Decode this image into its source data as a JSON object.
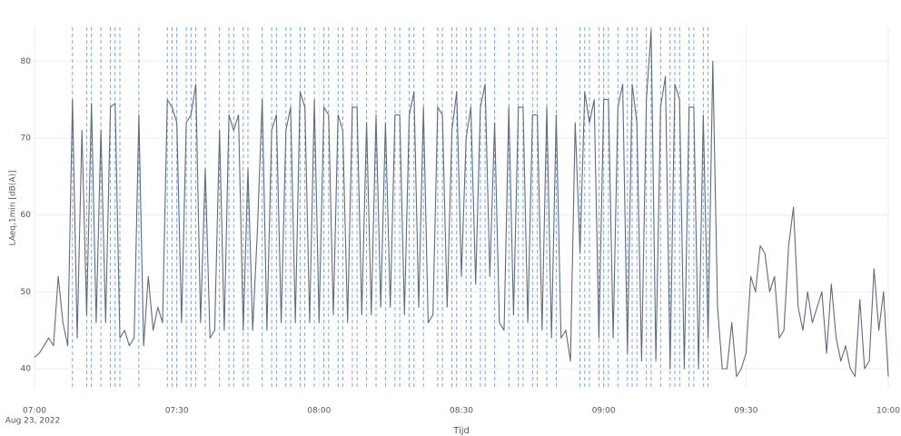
{
  "chart_data": {
    "type": "line",
    "x_label": "Tijd",
    "y_label": "LAeq,1min [dB(A)]",
    "date_label": "Aug 23, 2022",
    "xlim": [
      "07:00",
      "10:00"
    ],
    "xticks": [
      "07:00",
      "07:30",
      "08:00",
      "08:30",
      "09:00",
      "09:30",
      "10:00"
    ],
    "ylim": [
      37.4,
      84.4
    ],
    "yticks": [
      40,
      50,
      60,
      70,
      80
    ],
    "grid": true,
    "event_color": "#7aa7e0",
    "events": [
      "07:08",
      "07:11",
      "07:12",
      "07:14",
      "07:16",
      "07:17",
      "07:18",
      "07:22",
      "07:28",
      "07:29",
      "07:30",
      "07:32",
      "07:33",
      "07:34",
      "07:36",
      "07:39",
      "07:41",
      "07:42",
      "07:44",
      "07:45",
      "07:48",
      "07:50",
      "07:51",
      "07:53",
      "07:54",
      "07:56",
      "07:57",
      "07:59",
      "08:01",
      "08:02",
      "08:04",
      "08:05",
      "08:07",
      "08:08",
      "08:10",
      "08:12",
      "08:14",
      "08:16",
      "08:17",
      "08:19",
      "08:20",
      "08:22",
      "08:25",
      "08:26",
      "08:28",
      "08:29",
      "08:31",
      "08:32",
      "08:34",
      "08:35",
      "08:37",
      "08:40",
      "08:42",
      "08:43",
      "08:45",
      "08:46",
      "08:48",
      "08:50",
      "08:55",
      "08:56",
      "08:57",
      "08:59",
      "09:00",
      "09:01",
      "09:03",
      "09:05",
      "09:06",
      "09:07",
      "09:09",
      "09:10",
      "09:12",
      "09:14",
      "09:15",
      "09:16",
      "09:18",
      "09:19",
      "09:21",
      "09:22"
    ],
    "x": [
      "07:00",
      "07:01",
      "07:02",
      "07:03",
      "07:04",
      "07:05",
      "07:06",
      "07:07",
      "07:08",
      "07:09",
      "07:10",
      "07:11",
      "07:12",
      "07:13",
      "07:14",
      "07:15",
      "07:16",
      "07:17",
      "07:18",
      "07:19",
      "07:20",
      "07:21",
      "07:22",
      "07:23",
      "07:24",
      "07:25",
      "07:26",
      "07:27",
      "07:28",
      "07:29",
      "07:30",
      "07:31",
      "07:32",
      "07:33",
      "07:34",
      "07:35",
      "07:36",
      "07:37",
      "07:38",
      "07:39",
      "07:40",
      "07:41",
      "07:42",
      "07:43",
      "07:44",
      "07:45",
      "07:46",
      "07:47",
      "07:48",
      "07:49",
      "07:50",
      "07:51",
      "07:52",
      "07:53",
      "07:54",
      "07:55",
      "07:56",
      "07:57",
      "07:58",
      "07:59",
      "08:00",
      "08:01",
      "08:02",
      "08:03",
      "08:04",
      "08:05",
      "08:06",
      "08:07",
      "08:08",
      "08:09",
      "08:10",
      "08:11",
      "08:12",
      "08:13",
      "08:14",
      "08:15",
      "08:16",
      "08:17",
      "08:18",
      "08:19",
      "08:20",
      "08:21",
      "08:22",
      "08:23",
      "08:24",
      "08:25",
      "08:26",
      "08:27",
      "08:28",
      "08:29",
      "08:30",
      "08:31",
      "08:32",
      "08:33",
      "08:34",
      "08:35",
      "08:36",
      "08:37",
      "08:38",
      "08:39",
      "08:40",
      "08:41",
      "08:42",
      "08:43",
      "08:44",
      "08:45",
      "08:46",
      "08:47",
      "08:48",
      "08:49",
      "08:50",
      "08:51",
      "08:52",
      "08:53",
      "08:54",
      "08:55",
      "08:56",
      "08:57",
      "08:58",
      "08:59",
      "09:00",
      "09:01",
      "09:02",
      "09:03",
      "09:04",
      "09:05",
      "09:06",
      "09:07",
      "09:08",
      "09:09",
      "09:10",
      "09:11",
      "09:12",
      "09:13",
      "09:14",
      "09:15",
      "09:16",
      "09:17",
      "09:18",
      "09:19",
      "09:20",
      "09:21",
      "09:22",
      "09:23",
      "09:24",
      "09:25",
      "09:26",
      "09:27",
      "09:28",
      "09:29",
      "09:30",
      "09:31",
      "09:32",
      "09:33",
      "09:34",
      "09:35",
      "09:36",
      "09:37",
      "09:38",
      "09:39",
      "09:40",
      "09:41",
      "09:42",
      "09:43",
      "09:44",
      "09:45",
      "09:46",
      "09:47",
      "09:48",
      "09:49",
      "09:50",
      "09:51",
      "09:52",
      "09:53",
      "09:54",
      "09:55",
      "09:56",
      "09:57",
      "09:58",
      "09:59",
      "10:00"
    ],
    "series": [
      {
        "color": "#5f6b7c",
        "values": [
          41.5,
          42,
          43,
          44,
          43,
          52,
          46,
          43,
          75,
          44,
          71,
          47,
          74.5,
          46,
          71,
          46,
          74,
          74.5,
          44,
          45,
          43,
          44,
          73,
          43,
          52,
          45,
          48,
          46,
          75,
          74,
          72,
          46,
          72,
          73,
          77,
          46,
          66,
          44,
          45,
          71,
          45,
          73,
          71,
          73,
          45,
          66,
          45,
          58,
          75,
          45,
          71,
          73,
          46,
          71,
          74,
          46,
          76,
          74,
          46,
          75,
          46,
          74,
          73,
          47,
          73,
          71,
          46,
          74,
          74,
          47,
          72,
          47,
          73,
          48,
          72,
          48,
          73,
          73,
          47,
          73,
          76,
          48,
          74,
          46,
          47,
          74,
          73,
          48,
          71,
          76,
          52,
          70,
          74,
          51,
          74,
          77,
          52,
          72,
          46,
          45,
          74,
          47,
          74,
          74,
          46,
          73,
          73,
          45,
          74,
          44,
          73,
          44,
          45,
          41,
          72,
          55,
          76,
          72,
          75,
          44,
          75,
          75,
          44,
          74,
          77,
          42,
          77,
          72,
          41,
          75,
          84,
          41,
          74,
          78,
          40,
          77,
          75,
          40,
          74,
          74,
          40,
          73,
          44,
          80,
          48,
          40,
          40,
          46,
          39,
          40,
          42,
          52,
          50,
          56,
          55,
          50,
          52,
          44,
          45,
          56,
          61,
          48,
          45,
          50,
          46,
          48,
          50,
          42,
          51,
          44,
          41,
          43,
          40,
          39,
          49,
          40,
          41,
          53,
          45,
          50,
          39
        ]
      }
    ]
  }
}
